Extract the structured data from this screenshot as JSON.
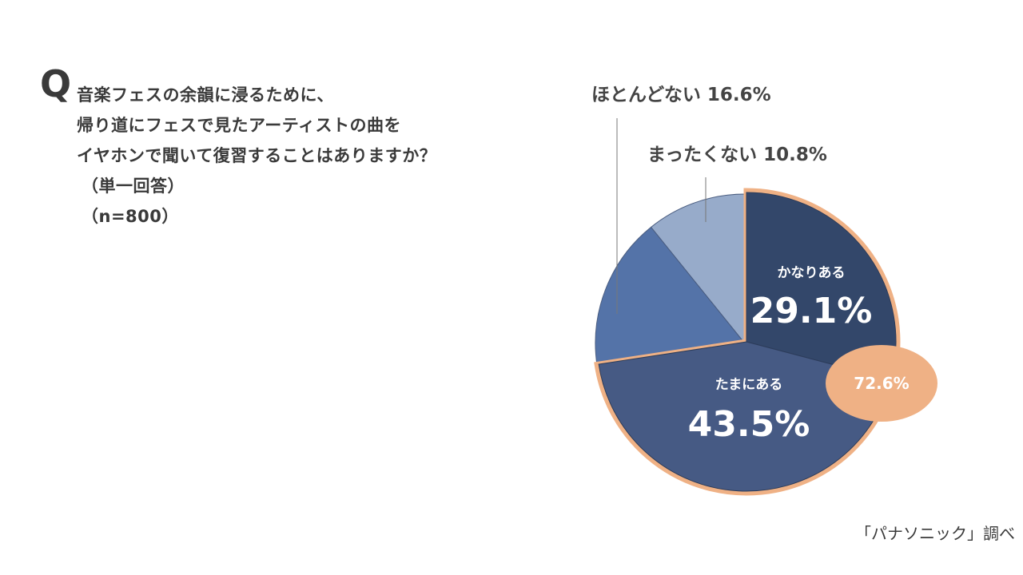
{
  "question": {
    "mark": "Q",
    "lines": [
      "音楽フェスの余韻に浸るために、",
      "帰り道にフェスで見たアーティストの曲を",
      "イヤホンで聞いて復習することはありますか？"
    ],
    "answer_type": "（単一回答）",
    "sample": "（n=800）"
  },
  "source": "「パナソニック」調べ",
  "chart_data": {
    "type": "pie",
    "slices": [
      {
        "label": "かなりある",
        "value": 29.1,
        "value_text": "29.1%",
        "color": "#33476a"
      },
      {
        "label": "たまにある",
        "value": 43.5,
        "value_text": "43.5%",
        "color": "#465a84"
      },
      {
        "label": "ほとんどない",
        "value": 16.6,
        "value_text": "16.6%",
        "color": "#5473a8"
      },
      {
        "label": "まったくない",
        "value": 10.8,
        "value_text": "10.8%",
        "color": "#97abca"
      }
    ],
    "highlight": {
      "text": "72.6%",
      "color": "#efb185",
      "slices": [
        "かなりある",
        "たまにある"
      ]
    },
    "outer_labels": [
      "ほとんどない 16.6%",
      "まったくない 10.8%"
    ]
  }
}
